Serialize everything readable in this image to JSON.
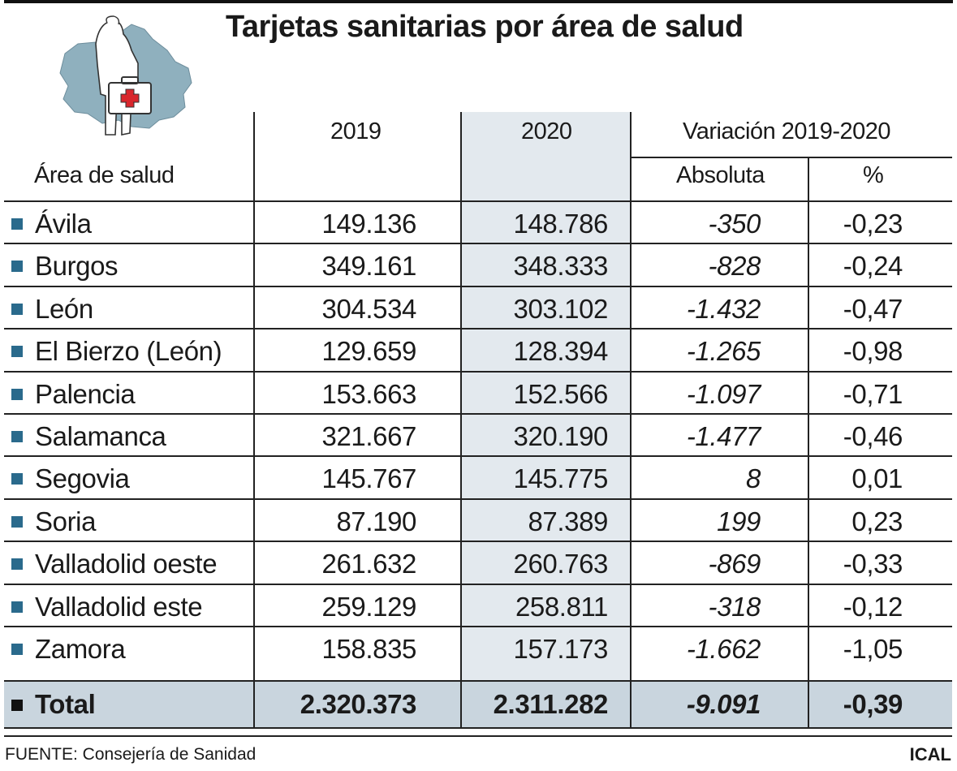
{
  "title": "Tarjetas sanitarias por área de salud",
  "columns": {
    "area": "Área de salud",
    "y2019": "2019",
    "y2020": "2020",
    "variation": "Variación 2019-2020",
    "absolute": "Absoluta",
    "percent": "%"
  },
  "rows": [
    {
      "area": "Ávila",
      "y2019": "149.136",
      "y2020": "148.786",
      "abs": "-350",
      "pct": "-0,23"
    },
    {
      "area": "Burgos",
      "y2019": "349.161",
      "y2020": "348.333",
      "abs": "-828",
      "pct": "-0,24"
    },
    {
      "area": "León",
      "y2019": "304.534",
      "y2020": "303.102",
      "abs": "-1.432",
      "pct": "-0,47"
    },
    {
      "area": "El Bierzo (León)",
      "y2019": "129.659",
      "y2020": "128.394",
      "abs": "-1.265",
      "pct": "-0,98"
    },
    {
      "area": "Palencia",
      "y2019": "153.663",
      "y2020": "152.566",
      "abs": "-1.097",
      "pct": "-0,71"
    },
    {
      "area": "Salamanca",
      "y2019": "321.667",
      "y2020": "320.190",
      "abs": "-1.477",
      "pct": "-0,46"
    },
    {
      "area": "Segovia",
      "y2019": "145.767",
      "y2020": "145.775",
      "abs": "8",
      "pct": "0,01"
    },
    {
      "area": "Soria",
      "y2019": "87.190",
      "y2020": "87.389",
      "abs": "199",
      "pct": "0,23"
    },
    {
      "area": "Valladolid oeste",
      "y2019": "261.632",
      "y2020": "260.763",
      "abs": "-869",
      "pct": "-0,33"
    },
    {
      "area": "Valladolid este",
      "y2019": "259.129",
      "y2020": "258.811",
      "abs": "-318",
      "pct": "-0,12"
    },
    {
      "area": "Zamora",
      "y2019": "158.835",
      "y2020": "157.173",
      "abs": "-1.662",
      "pct": "-1,05"
    }
  ],
  "total": {
    "area": "Total",
    "y2019": "2.320.373",
    "y2020": "2.311.282",
    "abs": "-9.091",
    "pct": "-0,39"
  },
  "source": "FUENTE: Consejería de Sanidad",
  "agency": "ICAL",
  "logo_icon": "map-with-person-and-medical-kit-icon",
  "colors": {
    "accent": "#2a6a8c",
    "shade": "#e3e9ee",
    "total_shade": "#c9d5de",
    "map": "#8fb0be"
  },
  "chart_data": {
    "type": "table",
    "title": "Tarjetas sanitarias por área de salud",
    "columns": [
      "Área de salud",
      "2019",
      "2020",
      "Absoluta",
      "%"
    ],
    "column_groups": [
      {
        "label": "Variación 2019-2020",
        "columns": [
          "Absoluta",
          "%"
        ]
      }
    ],
    "categories": [
      "Ávila",
      "Burgos",
      "León",
      "El Bierzo (León)",
      "Palencia",
      "Salamanca",
      "Segovia",
      "Soria",
      "Valladolid oeste",
      "Valladolid este",
      "Zamora",
      "Total"
    ],
    "series": [
      {
        "name": "2019",
        "values": [
          149136,
          349161,
          304534,
          129659,
          153663,
          321667,
          145767,
          87190,
          261632,
          259129,
          158835,
          2320373
        ]
      },
      {
        "name": "2020",
        "values": [
          148786,
          348333,
          303102,
          128394,
          152566,
          320190,
          145775,
          87389,
          260763,
          258811,
          157173,
          2311282
        ]
      },
      {
        "name": "Absoluta",
        "values": [
          -350,
          -828,
          -1432,
          -1265,
          -1097,
          -1477,
          8,
          199,
          -869,
          -318,
          -1662,
          -9091
        ]
      },
      {
        "name": "%",
        "values": [
          -0.23,
          -0.24,
          -0.47,
          -0.98,
          -0.71,
          -0.46,
          0.01,
          0.23,
          -0.33,
          -0.12,
          -1.05,
          -0.39
        ]
      }
    ]
  }
}
